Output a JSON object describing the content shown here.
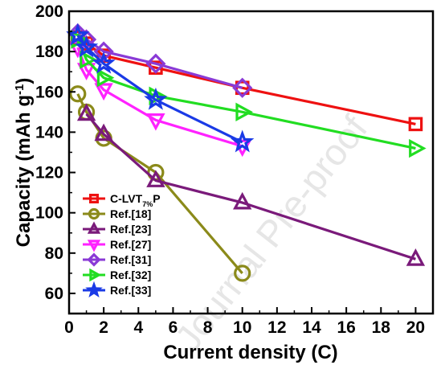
{
  "chart_data": {
    "type": "line",
    "xlabel": "Current density (C)",
    "ylabel": {
      "main": "Capacity (mAh g",
      "sup": "-1",
      "end": ")"
    },
    "xlim": [
      0,
      21
    ],
    "ylim": [
      50,
      200
    ],
    "xticks": [
      0,
      2,
      4,
      6,
      8,
      10,
      12,
      14,
      16,
      18,
      20
    ],
    "yticks": [
      60,
      80,
      100,
      120,
      140,
      160,
      180,
      200
    ],
    "grid": false,
    "legend_position": "lower-left",
    "watermark": "Journal Pre-proof",
    "series": [
      {
        "name": "C-LVT",
        "name_sub": "7%",
        "name_end": "P",
        "marker": "square",
        "color": "#ee1111",
        "x": [
          0.5,
          1,
          2,
          5,
          10,
          20
        ],
        "values": [
          187,
          184,
          178,
          172,
          162,
          144
        ]
      },
      {
        "name": "Ref.[18]",
        "marker": "circle",
        "color": "#8b8a1a",
        "x": [
          0.5,
          1,
          2,
          5,
          10
        ],
        "values": [
          159,
          150,
          137,
          120,
          70
        ]
      },
      {
        "name": "Ref.[23]",
        "marker": "triangle-up",
        "color": "#7a1a7a",
        "x": [
          1,
          2,
          5,
          10,
          20
        ],
        "values": [
          149,
          139,
          116,
          105,
          77
        ]
      },
      {
        "name": "Ref.[27]",
        "marker": "triangle-down",
        "color": "#ff22ff",
        "x": [
          0.5,
          1,
          2,
          5,
          10
        ],
        "values": [
          182,
          171,
          161,
          146,
          133
        ]
      },
      {
        "name": "Ref.[31]",
        "marker": "diamond",
        "color": "#8a3ad6",
        "x": [
          0.5,
          1,
          2,
          5,
          10
        ],
        "values": [
          189,
          186,
          180,
          174,
          162
        ]
      },
      {
        "name": "Ref.[32]",
        "marker": "triangle-right",
        "color": "#22dd22",
        "x": [
          0.5,
          1,
          2,
          5,
          10,
          20
        ],
        "values": [
          186,
          176,
          167,
          158,
          150,
          132
        ]
      },
      {
        "name": "Ref.[33]",
        "marker": "star",
        "color": "#1a3ae6",
        "x": [
          0.5,
          1,
          2,
          5,
          10
        ],
        "values": [
          188,
          182,
          174,
          156,
          135
        ]
      }
    ]
  }
}
